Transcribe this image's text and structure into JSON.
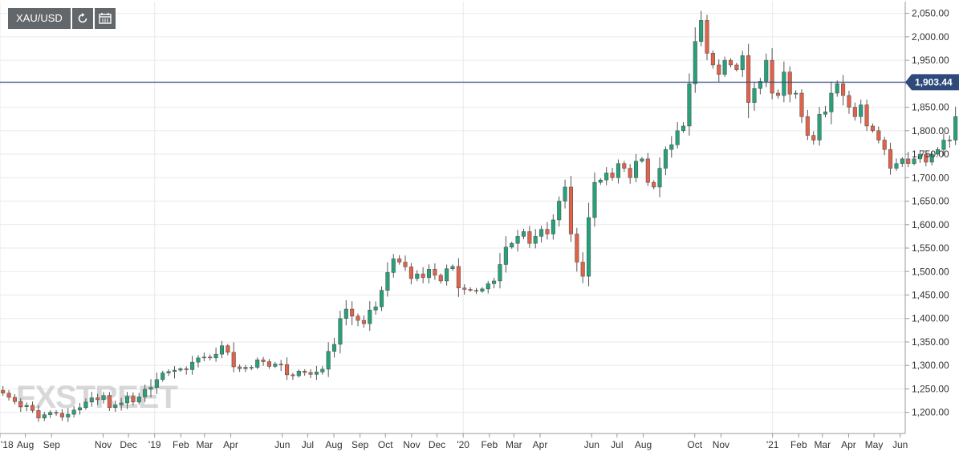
{
  "toolbar": {
    "symbol": "XAU/USD",
    "refresh_icon": "refresh-icon",
    "calendar_icon": "calendar-icon",
    "colors": {
      "background": "#62676b",
      "foreground": "#ffffff"
    }
  },
  "watermark": "FXSTREET",
  "chart_data": {
    "type": "candlestick",
    "title": "",
    "xlabel": "",
    "ylabel": "",
    "ylim": [
      1155,
      2075
    ],
    "y_ticks": [
      1200,
      1250,
      1300,
      1350,
      1400,
      1450,
      1500,
      1550,
      1600,
      1650,
      1700,
      1750,
      1800,
      1850,
      1900,
      1950,
      2000,
      2050
    ],
    "y_tick_labels": [
      "1,200.00",
      "1,250.00",
      "1,300.00",
      "1,350.00",
      "1,400.00",
      "1,450.00",
      "1,500.00",
      "1,550.00",
      "1,600.00",
      "1,650.00",
      "1,700.00",
      "1,750.00",
      "1,800.00",
      "1,850.00",
      "1,900.00",
      "1,950.00",
      "2,000.00",
      "2,050.00"
    ],
    "x_range": [
      "2018-07-02",
      "2021-06-07"
    ],
    "x_ticks": [
      {
        "date": "2018-07-02",
        "label": "'18"
      },
      {
        "date": "2018-08-01",
        "label": "Aug"
      },
      {
        "date": "2018-09-01",
        "label": "Sep"
      },
      {
        "date": "2018-11-01",
        "label": "Nov"
      },
      {
        "date": "2018-12-01",
        "label": "Dec"
      },
      {
        "date": "2019-01-01",
        "label": "'19"
      },
      {
        "date": "2019-02-01",
        "label": "Feb"
      },
      {
        "date": "2019-03-01",
        "label": "Mar"
      },
      {
        "date": "2019-04-01",
        "label": "Apr"
      },
      {
        "date": "2019-06-01",
        "label": "Jun"
      },
      {
        "date": "2019-07-01",
        "label": "Jul"
      },
      {
        "date": "2019-08-01",
        "label": "Aug"
      },
      {
        "date": "2019-09-01",
        "label": "Sep"
      },
      {
        "date": "2019-10-01",
        "label": "Oct"
      },
      {
        "date": "2019-11-01",
        "label": "Nov"
      },
      {
        "date": "2019-12-01",
        "label": "Dec"
      },
      {
        "date": "2020-01-01",
        "label": "'20"
      },
      {
        "date": "2020-02-01",
        "label": "Feb"
      },
      {
        "date": "2020-03-01",
        "label": "Mar"
      },
      {
        "date": "2020-04-01",
        "label": "Apr"
      },
      {
        "date": "2020-06-01",
        "label": "Jun"
      },
      {
        "date": "2020-07-01",
        "label": "Jul"
      },
      {
        "date": "2020-08-01",
        "label": "Aug"
      },
      {
        "date": "2020-10-01",
        "label": "Oct"
      },
      {
        "date": "2020-11-01",
        "label": "Nov"
      },
      {
        "date": "2021-01-01",
        "label": "'21"
      },
      {
        "date": "2021-02-01",
        "label": "Feb"
      },
      {
        "date": "2021-03-01",
        "label": "Mar"
      },
      {
        "date": "2021-04-01",
        "label": "Apr"
      },
      {
        "date": "2021-05-01",
        "label": "May"
      },
      {
        "date": "2021-06-01",
        "label": "Jun"
      }
    ],
    "last_price": 1903.44,
    "last_price_label": "1,903.44",
    "colors": {
      "up": "#26a17b",
      "down": "#e0624b",
      "wick": "#555555",
      "last_line": "#2e4a7a",
      "last_label_bg": "#2e4a7a",
      "grid": "#e9e9e9"
    },
    "grid": true,
    "frequency": "weekly",
    "start_date": "2018-07-02",
    "closes": [
      1241,
      1232,
      1223,
      1212,
      1215,
      1204,
      1188,
      1195,
      1200,
      1198,
      1190,
      1196,
      1205,
      1210,
      1222,
      1231,
      1227,
      1236,
      1210,
      1216,
      1220,
      1234,
      1222,
      1233,
      1249,
      1253,
      1270,
      1284,
      1287,
      1290,
      1293,
      1291,
      1307,
      1316,
      1318,
      1316,
      1324,
      1342,
      1328,
      1297,
      1293,
      1296,
      1296,
      1312,
      1308,
      1298,
      1303,
      1302,
      1280,
      1278,
      1288,
      1285,
      1281,
      1286,
      1292,
      1330,
      1345,
      1400,
      1420,
      1405,
      1396,
      1389,
      1418,
      1425,
      1460,
      1498,
      1527,
      1520,
      1510,
      1485,
      1495,
      1487,
      1505,
      1492,
      1480,
      1506,
      1511,
      1465,
      1462,
      1460,
      1458,
      1463,
      1474,
      1480,
      1515,
      1552,
      1560,
      1575,
      1585,
      1560,
      1575,
      1590,
      1580,
      1610,
      1650,
      1680,
      1580,
      1520,
      1490,
      1615,
      1690,
      1695,
      1710,
      1700,
      1730,
      1720,
      1700,
      1735,
      1740,
      1690,
      1680,
      1720,
      1760,
      1770,
      1800,
      1810,
      1900,
      1990,
      2035,
      1965,
      1940,
      1920,
      1950,
      1940,
      1930,
      1960,
      1860,
      1890,
      1905,
      1950,
      1880,
      1875,
      1925,
      1878,
      1880,
      1830,
      1790,
      1780,
      1835,
      1840,
      1880,
      1900,
      1875,
      1850,
      1830,
      1855,
      1810,
      1800,
      1780,
      1760,
      1720,
      1730,
      1740,
      1730,
      1740,
      1750,
      1733,
      1750,
      1760,
      1780,
      1780,
      1830,
      1850,
      1880,
      1903.44
    ]
  }
}
